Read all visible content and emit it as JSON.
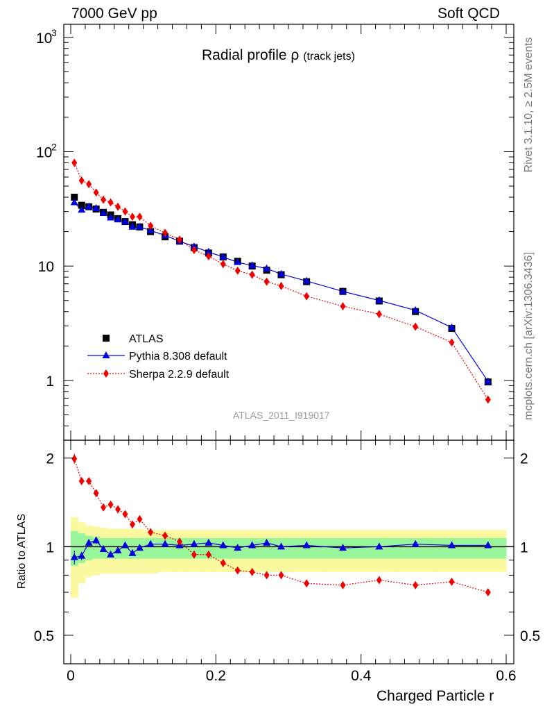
{
  "header": {
    "left": "7000 GeV pp",
    "right": "Soft QCD"
  },
  "side_labels": {
    "rivet": "Rivet 3.1.10, ≥ 2.5M events",
    "mcplots": "mcplots.cern.ch [arXiv:1306.3436]"
  },
  "colors": {
    "atlas": "#000000",
    "pythia": "#0000dd",
    "sherpa": "#ee0000",
    "band_inner": "#99f599",
    "band_outer": "#fbf9a0"
  },
  "chart_data": [
    {
      "type": "scatter",
      "title": "Radial profile",
      "title_symbol": "ρ",
      "title_suffix": "(track jets)",
      "watermark": "ATLAS_2011_I919017",
      "xlim": [
        0,
        0.6
      ],
      "ylim": [
        0.3,
        1300
      ],
      "y_scale": "log",
      "x_ticks": [
        0,
        0.2,
        0.4,
        0.6
      ],
      "y_ticks": [
        {
          "value": 1,
          "label": "1"
        },
        {
          "value": 10,
          "label": "10"
        },
        {
          "value": 100,
          "label": "10",
          "exp": "2"
        },
        {
          "value": 1000,
          "label": "10",
          "exp": "3"
        }
      ],
      "legend_position": "lower-left",
      "x": [
        0.005,
        0.015,
        0.025,
        0.035,
        0.045,
        0.055,
        0.065,
        0.075,
        0.085,
        0.095,
        0.11,
        0.13,
        0.15,
        0.17,
        0.19,
        0.21,
        0.23,
        0.25,
        0.27,
        0.29,
        0.325,
        0.375,
        0.425,
        0.475,
        0.525,
        0.575
      ],
      "series": [
        {
          "name": "ATLAS",
          "marker": "square",
          "values": [
            40,
            34,
            33,
            31.5,
            29.5,
            28,
            26,
            24.5,
            23,
            22,
            20,
            18,
            16.5,
            14.5,
            13,
            12,
            11,
            10,
            9.2,
            8.4,
            7.3,
            6.0,
            4.95,
            4.0,
            2.85,
            0.97
          ]
        },
        {
          "name": "Pythia 8.308 default",
          "marker": "triangle",
          "line": "solid",
          "values": [
            36,
            31,
            33,
            32,
            29,
            26.5,
            25.5,
            24.5,
            22,
            22,
            20.5,
            18.5,
            16.5,
            14.8,
            13.3,
            12,
            10.8,
            10.1,
            9.5,
            8.5,
            7.4,
            6.0,
            5.0,
            4.1,
            2.9,
            0.98
          ]
        },
        {
          "name": "Sherpa 2.2.9 default",
          "marker": "diamond",
          "line": "dotted",
          "values": [
            80,
            56,
            52,
            44,
            38,
            36,
            33,
            30,
            27,
            27,
            22.5,
            19.5,
            17,
            13.8,
            12.2,
            10.4,
            9.1,
            8.4,
            7.3,
            6.7,
            5.45,
            4.45,
            3.8,
            2.95,
            2.15,
            0.68
          ]
        }
      ]
    },
    {
      "type": "scatter",
      "ylabel": "Ratio to ATLAS",
      "xlabel": "Charged Particle r",
      "xlim": [
        0,
        0.6
      ],
      "ylim": [
        0.4,
        2.3
      ],
      "y_scale": "log",
      "x_ticks": [
        0,
        0.2,
        0.4,
        0.6
      ],
      "y_ticks": [
        {
          "value": 0.5,
          "label": "0.5"
        },
        {
          "value": 1,
          "label": "1"
        },
        {
          "value": 2,
          "label": "2"
        }
      ],
      "reference_line": 1,
      "x_edges": [
        0,
        0.01,
        0.02,
        0.03,
        0.04,
        0.05,
        0.06,
        0.07,
        0.08,
        0.09,
        0.1,
        0.12,
        0.14,
        0.16,
        0.18,
        0.2,
        0.22,
        0.24,
        0.26,
        0.28,
        0.3,
        0.35,
        0.4,
        0.45,
        0.5,
        0.55,
        0.6
      ],
      "bands": {
        "inner_low": [
          0.86,
          0.88,
          0.9,
          0.91,
          0.91,
          0.91,
          0.91,
          0.91,
          0.91,
          0.91,
          0.91,
          0.91,
          0.91,
          0.91,
          0.91,
          0.91,
          0.91,
          0.91,
          0.91,
          0.91,
          0.91,
          0.91,
          0.91,
          0.91,
          0.91,
          0.91
        ],
        "inner_high": [
          1.13,
          1.11,
          1.09,
          1.08,
          1.07,
          1.07,
          1.07,
          1.07,
          1.07,
          1.07,
          1.07,
          1.07,
          1.07,
          1.07,
          1.07,
          1.07,
          1.07,
          1.07,
          1.07,
          1.07,
          1.07,
          1.07,
          1.07,
          1.07,
          1.07,
          1.07
        ],
        "outer_low": [
          0.67,
          0.75,
          0.79,
          0.8,
          0.81,
          0.81,
          0.81,
          0.81,
          0.81,
          0.81,
          0.81,
          0.82,
          0.82,
          0.82,
          0.82,
          0.82,
          0.82,
          0.82,
          0.82,
          0.82,
          0.82,
          0.82,
          0.82,
          0.82,
          0.82,
          0.82
        ],
        "outer_high": [
          1.26,
          1.21,
          1.18,
          1.17,
          1.16,
          1.15,
          1.15,
          1.15,
          1.15,
          1.15,
          1.14,
          1.14,
          1.14,
          1.14,
          1.14,
          1.14,
          1.14,
          1.14,
          1.14,
          1.14,
          1.14,
          1.14,
          1.14,
          1.14,
          1.14,
          1.14
        ]
      },
      "x": [
        0.005,
        0.015,
        0.025,
        0.035,
        0.045,
        0.055,
        0.065,
        0.075,
        0.085,
        0.095,
        0.11,
        0.13,
        0.15,
        0.17,
        0.19,
        0.21,
        0.23,
        0.25,
        0.27,
        0.29,
        0.325,
        0.375,
        0.425,
        0.475,
        0.525,
        0.575
      ],
      "series": [
        {
          "name": "Pythia 8.308 default",
          "marker": "triangle",
          "line": "solid",
          "values": [
            0.92,
            0.93,
            1.03,
            1.05,
            0.98,
            0.94,
            0.97,
            1.01,
            0.95,
            0.99,
            1.02,
            1.02,
            1.01,
            1.02,
            1.03,
            1.01,
            0.99,
            1.01,
            1.03,
            1.0,
            1.01,
            0.99,
            1.0,
            1.02,
            1.01,
            1.01
          ],
          "errors": [
            0.05,
            0.03,
            0.03,
            0.03,
            0.02,
            0.02,
            0.02,
            0.02,
            0.02,
            0.02,
            0.01,
            0.01,
            0.01,
            0.01,
            0.01,
            0.01,
            0.01,
            0.01,
            0.01,
            0.01,
            0.01,
            0.01,
            0.01,
            0.01,
            0.01,
            0.02
          ]
        },
        {
          "name": "Sherpa 2.2.9 default",
          "marker": "diamond",
          "line": "dotted",
          "values": [
            1.99,
            1.67,
            1.67,
            1.52,
            1.36,
            1.39,
            1.34,
            1.29,
            1.19,
            1.24,
            1.12,
            1.09,
            1.04,
            0.94,
            0.94,
            0.88,
            0.83,
            0.82,
            0.8,
            0.8,
            0.75,
            0.74,
            0.77,
            0.74,
            0.76,
            0.7
          ],
          "errors": [
            0.08,
            0.04,
            0.04,
            0.03,
            0.03,
            0.03,
            0.02,
            0.02,
            0.02,
            0.02,
            0.02,
            0.02,
            0.01,
            0.01,
            0.01,
            0.01,
            0.01,
            0.01,
            0.01,
            0.01,
            0.01,
            0.01,
            0.01,
            0.01,
            0.01,
            0.02
          ]
        }
      ]
    }
  ]
}
